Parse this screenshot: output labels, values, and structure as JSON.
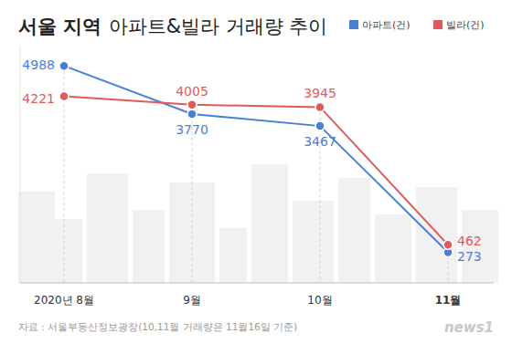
{
  "chart_data": {
    "type": "line",
    "title": "서울 지역 아파트&빌라 거래량 추이",
    "source": "자료 : 서울부동산정보광장(10,11월 거래량은 11월16일 기준)",
    "watermark": "news1",
    "categories": [
      "2020년 8월",
      "9월",
      "10월",
      "11월"
    ],
    "series": [
      {
        "name": "아파트(건)",
        "color": "#4a7fd4",
        "values": [
          4988,
          3770,
          3467,
          273
        ]
      },
      {
        "name": "빌라(건)",
        "color": "#e05a5a",
        "values": [
          4221,
          4005,
          3945,
          462
        ]
      }
    ],
    "ylim": [
      -500,
      5500
    ],
    "yticks": [],
    "grid": false,
    "legend": "top-right",
    "data_labels": true,
    "tick_labels": "x",
    "marker": "circle",
    "line_style": "solid"
  }
}
